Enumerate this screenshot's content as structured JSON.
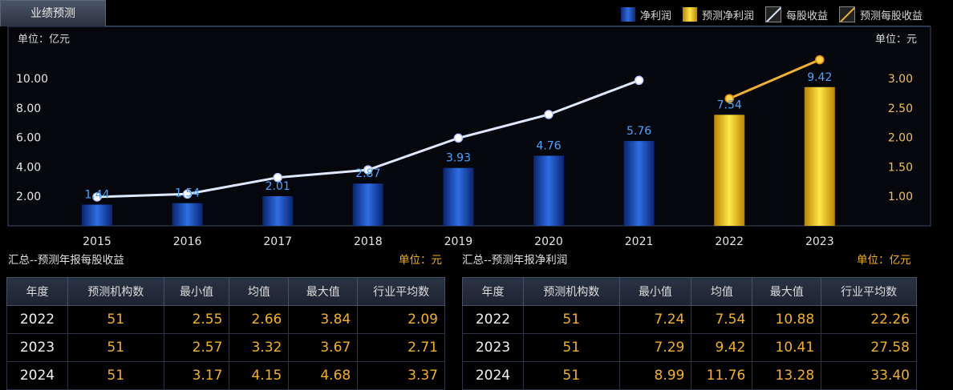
{
  "tab": {
    "label": "业绩预测"
  },
  "legend": {
    "net_profit": "净利润",
    "forecast_net_profit": "预测净利润",
    "eps": "每股收益",
    "forecast_eps": "预测每股收益"
  },
  "colors": {
    "actual_bar": "#1f5ad6",
    "forecast_bar": "#f5c400",
    "eps_line": "#dfe8ff",
    "forecast_eps_line": "#f0b030",
    "axis_text": "#e6e6e6",
    "value_label": "#4aa3ff",
    "unit": "#f5b11a"
  },
  "chart_data": {
    "type": "bar",
    "categories": [
      "2015",
      "2016",
      "2017",
      "2018",
      "2019",
      "2020",
      "2021",
      "2022",
      "2023"
    ],
    "left_unit": "单位：亿元",
    "right_unit": "单位：元",
    "left_ticks": [
      "2.00",
      "4.00",
      "6.00",
      "8.00",
      "10.00"
    ],
    "right_ticks": [
      "1.00",
      "1.50",
      "2.00",
      "2.50",
      "3.00"
    ],
    "y_left_range": [
      0,
      11.8
    ],
    "y_right_range": [
      0.5,
      3.45
    ],
    "series": [
      {
        "name": "净利润",
        "axis": "left",
        "type": "bar",
        "values": [
          1.44,
          1.54,
          2.01,
          2.87,
          3.93,
          4.76,
          5.76,
          null,
          null
        ],
        "labels": [
          "1.44",
          "1.54",
          "2.01",
          "2.87",
          "3.93",
          "4.76",
          "5.76",
          "",
          ""
        ]
      },
      {
        "name": "预测净利润",
        "axis": "left",
        "type": "bar",
        "values": [
          null,
          null,
          null,
          null,
          null,
          null,
          null,
          7.54,
          9.42
        ],
        "labels": [
          "",
          "",
          "",
          "",
          "",
          "",
          "",
          "7.54",
          "9.42"
        ]
      },
      {
        "name": "每股收益",
        "axis": "right",
        "type": "line",
        "values": [
          0.99,
          1.04,
          1.32,
          1.45,
          1.99,
          2.39,
          2.97,
          null,
          null
        ]
      },
      {
        "name": "预测每股收益",
        "axis": "right",
        "type": "line",
        "values": [
          null,
          null,
          null,
          null,
          null,
          null,
          null,
          2.66,
          3.32
        ]
      }
    ]
  },
  "eps_table": {
    "title": "汇总--预测年报每股收益",
    "unit": "单位：元",
    "headers": [
      "年度",
      "预测机构数",
      "最小值",
      "均值",
      "最大值",
      "行业平均数"
    ],
    "rows": [
      [
        "2022",
        "51",
        "2.55",
        "2.66",
        "3.84",
        "2.09"
      ],
      [
        "2023",
        "51",
        "2.57",
        "3.32",
        "3.67",
        "2.71"
      ],
      [
        "2024",
        "51",
        "3.17",
        "4.15",
        "4.68",
        "3.37"
      ]
    ]
  },
  "profit_table": {
    "title": "汇总--预测年报净利润",
    "unit": "单位：亿元",
    "headers": [
      "年度",
      "预测机构数",
      "最小值",
      "均值",
      "最大值",
      "行业平均数"
    ],
    "rows": [
      [
        "2022",
        "51",
        "7.24",
        "7.54",
        "10.88",
        "22.26"
      ],
      [
        "2023",
        "51",
        "7.29",
        "9.42",
        "10.41",
        "27.58"
      ],
      [
        "2024",
        "51",
        "8.99",
        "11.76",
        "13.28",
        "33.40"
      ]
    ]
  }
}
